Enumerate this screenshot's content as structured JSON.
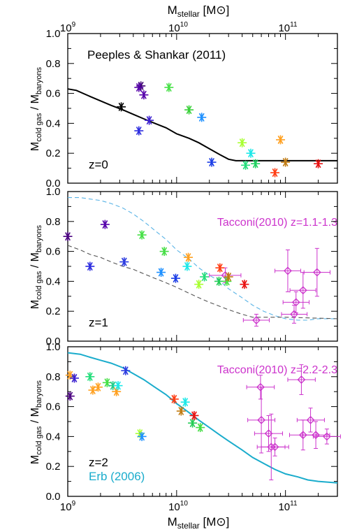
{
  "top_axis_label": "M",
  "top_axis_sub": "stellar",
  "top_axis_unit": " [M",
  "top_axis_unit_close": "]",
  "top_tick_labels": [
    "10",
    "10",
    "10"
  ],
  "top_tick_exponents": [
    "9",
    "10",
    "11"
  ],
  "chart_data": [
    {
      "type": "scatter",
      "panel": "z=0",
      "title": "Peeples & Shankar (2011)",
      "annotation": "z=0",
      "xlabel": "",
      "ylabel": "M_cold gas / M_baryons",
      "ylabel_parts": {
        "main": "M",
        "sub1": "cold gas",
        "mid": " / M",
        "sub2": "baryons"
      },
      "x_scale": "log",
      "xlim": [
        1000000000.0,
        300000000000.0
      ],
      "ylim": [
        0.0,
        1.0
      ],
      "yticks": [
        "0.0",
        "0.2",
        "0.4",
        "0.6",
        "0.8",
        "1.0"
      ],
      "legend": "none",
      "grid": false,
      "model_line": {
        "color": "#000000",
        "style": "solid",
        "x": [
          1000000000.0,
          1200000000.0,
          1600000000.0,
          2000000000.0,
          2500000000.0,
          3200000000.0,
          4000000000.0,
          5000000000.0,
          6300000000.0,
          8000000000.0,
          10000000000.0,
          13000000000.0,
          16000000000.0,
          20000000000.0,
          25000000000.0,
          30000000000.0,
          35000000000.0,
          40000000000.0,
          50000000000.0,
          100000000000.0,
          300000000000.0
        ],
        "y": [
          0.63,
          0.62,
          0.58,
          0.55,
          0.52,
          0.49,
          0.46,
          0.43,
          0.4,
          0.37,
          0.33,
          0.3,
          0.27,
          0.23,
          0.19,
          0.16,
          0.15,
          0.15,
          0.15,
          0.15,
          0.15
        ]
      },
      "points": {
        "marker": "asterisk",
        "x": [
          3100000000.0,
          4700000000.0,
          5000000000.0,
          4500000000.0,
          5600000000.0,
          4500000000.0,
          8500000000.0,
          13000000000.0,
          17000000000.0,
          21000000000.0,
          40000000000.0,
          43000000000.0,
          48000000000.0,
          53000000000.0,
          80000000000.0,
          90000000000.0,
          100000000000.0,
          200000000000.0
        ],
        "y": [
          0.51,
          0.65,
          0.59,
          0.64,
          0.42,
          0.35,
          0.64,
          0.49,
          0.44,
          0.14,
          0.27,
          0.12,
          0.2,
          0.13,
          0.07,
          0.29,
          0.14,
          0.13
        ],
        "colors": [
          "#000000",
          "#3b006e",
          "#5500aa",
          "#5500aa",
          "#3a1fd0",
          "#2a2adf",
          "#44e044",
          "#38d038",
          "#1e90ff",
          "#1a3ce6",
          "#a8ff30",
          "#22dd7a",
          "#1ae8e8",
          "#20d060",
          "#ff3a10",
          "#ffa020",
          "#c07a10",
          "#e81010"
        ]
      }
    },
    {
      "type": "scatter",
      "panel": "z=1",
      "title": "Tacconi(2010) z=1.1-1.3",
      "annotation": "z=1",
      "xlabel": "",
      "ylabel": "M_cold gas / M_baryons",
      "ylabel_parts": {
        "main": "M",
        "sub1": "cold gas",
        "mid": " / M",
        "sub2": "baryons"
      },
      "x_scale": "log",
      "xlim": [
        1000000000.0,
        300000000000.0
      ],
      "ylim": [
        0.0,
        1.0
      ],
      "yticks": [
        "0.0",
        "0.2",
        "0.4",
        "0.6",
        "0.8",
        "1.0"
      ],
      "legend": "none",
      "grid": false,
      "model_lines": [
        {
          "color": "#5ab4e6",
          "style": "dashed",
          "x": [
            1000000000.0,
            1300000000.0,
            1600000000.0,
            2000000000.0,
            2500000000.0,
            3200000000.0,
            4000000000.0,
            5000000000.0,
            6300000000.0,
            8000000000.0,
            10000000000.0,
            13000000000.0,
            16000000000.0,
            20000000000.0,
            25000000000.0,
            30000000000.0,
            40000000000.0,
            50000000000.0,
            63000000000.0,
            80000000000.0,
            100000000000.0,
            130000000000.0,
            160000000000.0,
            200000000000.0,
            300000000000.0
          ],
          "y": [
            0.96,
            0.96,
            0.95,
            0.94,
            0.92,
            0.89,
            0.85,
            0.8,
            0.74,
            0.68,
            0.61,
            0.55,
            0.49,
            0.44,
            0.4,
            0.35,
            0.29,
            0.24,
            0.2,
            0.17,
            0.15,
            0.14,
            0.14,
            0.15,
            0.15
          ]
        },
        {
          "color": "#555555",
          "style": "dashed",
          "x": [
            1000000000.0,
            1300000000.0,
            1600000000.0,
            2000000000.0,
            2500000000.0,
            3200000000.0,
            4000000000.0,
            5000000000.0,
            6300000000.0,
            8000000000.0,
            10000000000.0,
            13000000000.0,
            16000000000.0,
            20000000000.0,
            30000000000.0,
            40000000000.0,
            50000000000.0,
            100000000000.0,
            300000000000.0
          ],
          "y": [
            0.64,
            0.61,
            0.58,
            0.56,
            0.53,
            0.5,
            0.48,
            0.45,
            0.42,
            0.39,
            0.36,
            0.32,
            0.29,
            0.26,
            0.21,
            0.18,
            0.16,
            0.16,
            0.15
          ]
        }
      ],
      "points": {
        "marker": "asterisk",
        "x": [
          1000000000.0,
          1600000000.0,
          2200000000.0,
          3300000000.0,
          4800000000.0,
          7200000000.0,
          7700000000.0,
          9800000000.0,
          12500000000.0,
          12800000000.0,
          16000000000.0,
          18000000000.0,
          24500000000.0,
          25000000000.0,
          29000000000.0,
          30000000000.0,
          42000000000.0
        ],
        "y": [
          0.7,
          0.5,
          0.78,
          0.53,
          0.71,
          0.46,
          0.6,
          0.42,
          0.5,
          0.56,
          0.38,
          0.43,
          0.4,
          0.49,
          0.4,
          0.43,
          0.38
        ],
        "colors": [
          "#4a0080",
          "#2a2adf",
          "#5500aa",
          "#2a3ae0",
          "#44e044",
          "#1e90ff",
          "#44dd44",
          "#1a3ce6",
          "#1ae8e8",
          "#ffa020",
          "#a8ff30",
          "#22dd7a",
          "#22cc55",
          "#ff3a10",
          "#44e044",
          "#c07a10",
          "#e81010"
        ]
      },
      "observations": {
        "label": "Tacconi(2010) z=1.1-1.3",
        "marker": "diamond",
        "color": "#cc33cc",
        "x": [
          28000000000.0,
          54000000000.0,
          105000000000.0,
          120000000000.0,
          125000000000.0,
          145000000000.0,
          195000000000.0
        ],
        "y": [
          0.44,
          0.14,
          0.47,
          0.18,
          0.26,
          0.34,
          0.46
        ],
        "x_err_lo": [
          8000000000.0,
          13000000000.0,
          25000000000.0,
          28000000000.0,
          30000000000.0,
          35000000000.0,
          47000000000.0
        ],
        "x_err_hi": [
          11000000000.0,
          17000000000.0,
          33000000000.0,
          38000000000.0,
          40000000000.0,
          45000000000.0,
          62000000000.0
        ],
        "y_err": [
          0.05,
          0.04,
          0.14,
          0.06,
          0.07,
          0.12,
          0.16
        ]
      }
    },
    {
      "type": "scatter",
      "panel": "z=2",
      "title": "Tacconi(2010) z=2.2-2.3",
      "annotation": "z=2",
      "annotation2": "Erb (2006)",
      "xlabel": "M_stellar [M_sun]",
      "xlabel_parts": {
        "main": "M",
        "sub": "stellar",
        "unit": " [M",
        "close": "]"
      },
      "ylabel": "M_cold gas / M_baryons",
      "ylabel_parts": {
        "main": "M",
        "sub1": "cold gas",
        "mid": " / M",
        "sub2": "baryons"
      },
      "x_scale": "log",
      "xlim": [
        1000000000.0,
        300000000000.0
      ],
      "ylim": [
        0.0,
        1.0
      ],
      "yticks": [
        "0.0",
        "0.2",
        "0.4",
        "0.6",
        "0.8",
        "1.0"
      ],
      "xtick_bases": [
        "10",
        "10",
        "10"
      ],
      "xtick_exponents": [
        "9",
        "10",
        "11"
      ],
      "legend": "none",
      "grid": false,
      "model_line": {
        "label": "Erb (2006)",
        "color": "#1aaccc",
        "style": "solid",
        "x": [
          1000000000.0,
          1300000000.0,
          1600000000.0,
          2000000000.0,
          2500000000.0,
          3200000000.0,
          4000000000.0,
          5000000000.0,
          6300000000.0,
          8000000000.0,
          10000000000.0,
          13000000000.0,
          16000000000.0,
          20000000000.0,
          25000000000.0,
          30000000000.0,
          40000000000.0,
          50000000000.0,
          63000000000.0,
          80000000000.0,
          100000000000.0,
          130000000000.0,
          160000000000.0,
          200000000000.0,
          300000000000.0
        ],
        "y": [
          0.96,
          0.95,
          0.93,
          0.91,
          0.89,
          0.86,
          0.82,
          0.78,
          0.73,
          0.68,
          0.62,
          0.56,
          0.51,
          0.46,
          0.41,
          0.37,
          0.31,
          0.26,
          0.22,
          0.18,
          0.15,
          0.13,
          0.11,
          0.1,
          0.09
        ]
      },
      "points": {
        "marker": "asterisk",
        "x": [
          1050000000.0,
          1050000000.0,
          1150000000.0,
          1600000000.0,
          1700000000.0,
          1900000000.0,
          2300000000.0,
          2600000000.0,
          2800000000.0,
          2900000000.0,
          3400000000.0,
          4600000000.0,
          4800000000.0,
          9500000000.0,
          11000000000.0,
          12000000000.0,
          14000000000.0,
          14500000000.0,
          16500000000.0
        ],
        "y": [
          0.81,
          0.67,
          0.79,
          0.8,
          0.71,
          0.73,
          0.76,
          0.74,
          0.7,
          0.74,
          0.84,
          0.42,
          0.4,
          0.65,
          0.57,
          0.63,
          0.49,
          0.54,
          0.46
        ],
        "colors": [
          "#ffa020",
          "#4a0080",
          "#3a1fd0",
          "#22dd7a",
          "#ffa020",
          "#ffa020",
          "#44e044",
          "#22cc88",
          "#ffa020",
          "#1ae8e8",
          "#2a3ae0",
          "#a8ff30",
          "#1e90ff",
          "#ff3a10",
          "#c07a10",
          "#1ae8e8",
          "#22cc55",
          "#e81010",
          "#44dd44"
        ]
      },
      "observations": {
        "label": "Tacconi(2010) z=2.2-2.3",
        "marker": "diamond",
        "color": "#cc33cc",
        "x": [
          59000000000.0,
          60000000000.0,
          70000000000.0,
          74000000000.0,
          80000000000.0,
          140000000000.0,
          145000000000.0,
          170000000000.0,
          190000000000.0,
          240000000000.0
        ],
        "y": [
          0.73,
          0.51,
          0.42,
          0.33,
          0.33,
          0.78,
          0.41,
          0.51,
          0.41,
          0.4
        ],
        "x_err_lo": [
          15000000000.0,
          15000000000.0,
          18000000000.0,
          19000000000.0,
          20000000000.0,
          35000000000.0,
          36000000000.0,
          42000000000.0,
          47000000000.0,
          60000000000.0
        ],
        "x_err_hi": [
          20000000000.0,
          20000000000.0,
          24000000000.0,
          25000000000.0,
          27000000000.0,
          48000000000.0,
          50000000000.0,
          58000000000.0,
          65000000000.0,
          80000000000.0
        ],
        "y_err": [
          0.08,
          0.22,
          0.12,
          0.22,
          0.06,
          0.1,
          0.1,
          0.08,
          0.09,
          0.05
        ]
      }
    }
  ]
}
